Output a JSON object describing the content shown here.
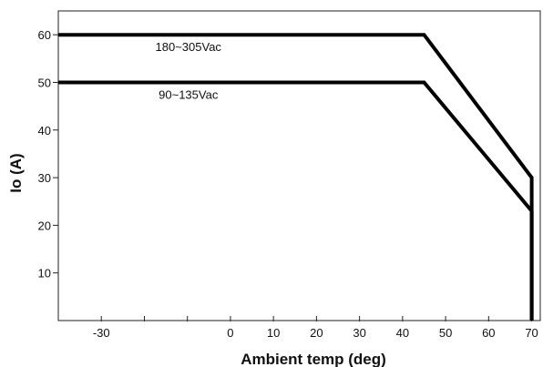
{
  "chart_data": {
    "type": "line",
    "title": "",
    "xlabel": "Ambient temp (deg)",
    "ylabel": "Io (A)",
    "xlim": [
      -40,
      72
    ],
    "ylim": [
      0,
      65
    ],
    "x_ticks": [
      -30,
      0,
      10,
      20,
      30,
      40,
      50,
      60,
      70
    ],
    "x_minor_ticks": [
      -20,
      -10
    ],
    "y_ticks": [
      10,
      20,
      30,
      40,
      50,
      60
    ],
    "grid": false,
    "legend": "none",
    "series_color": "#000000",
    "series": [
      {
        "label": "180~305Vac",
        "points": [
          [
            -40,
            60
          ],
          [
            45,
            60
          ],
          [
            70,
            30
          ],
          [
            70,
            0
          ]
        ]
      },
      {
        "label": "90~135Vac",
        "points": [
          [
            -40,
            50
          ],
          [
            45,
            50
          ],
          [
            70,
            23
          ],
          [
            70,
            0
          ]
        ]
      }
    ]
  }
}
